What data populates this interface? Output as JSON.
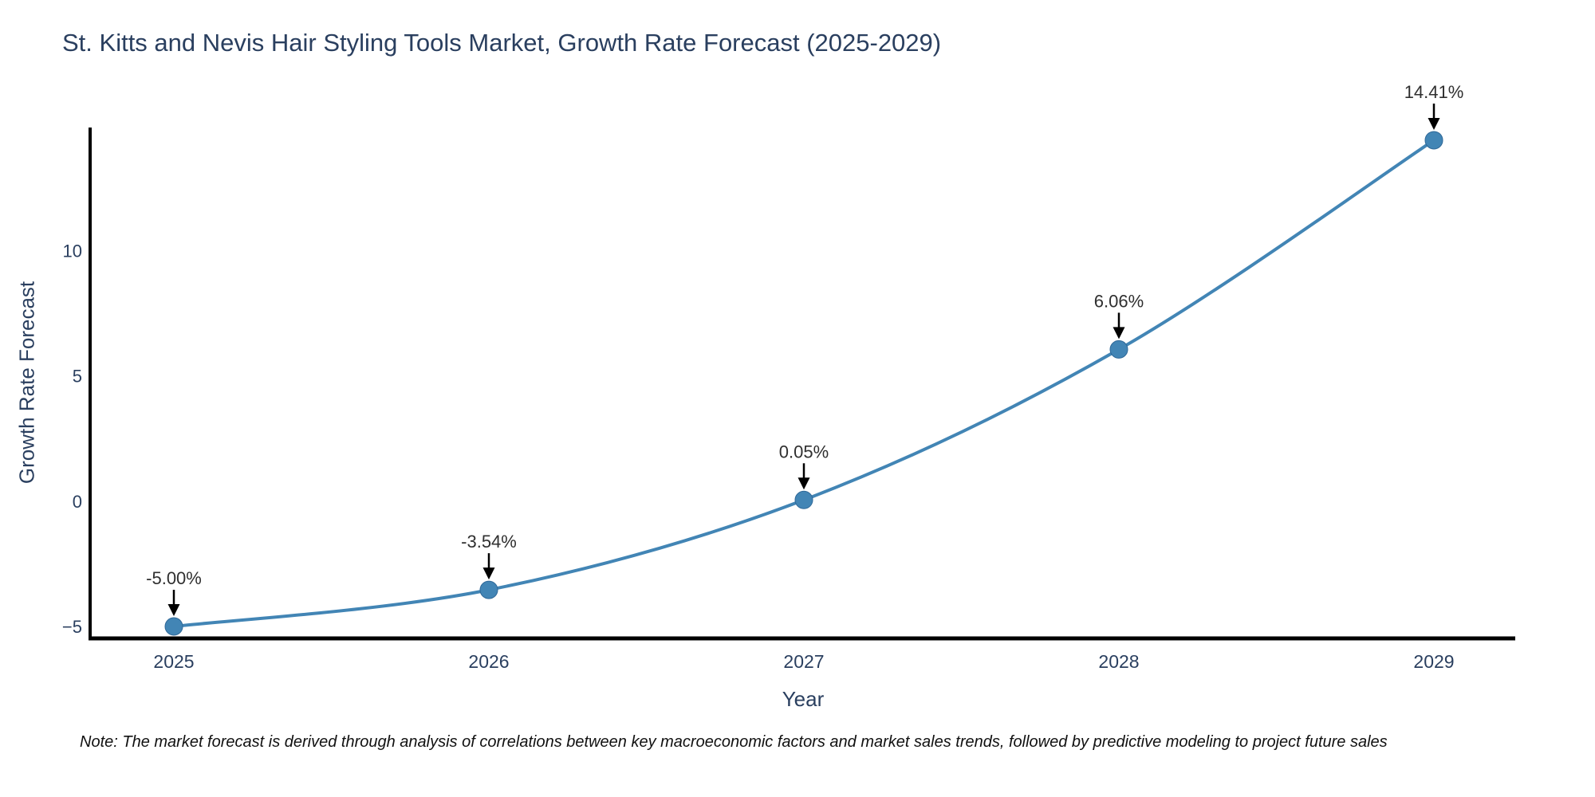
{
  "chart_data": {
    "type": "line",
    "title": "St. Kitts and Nevis Hair Styling Tools Market, Growth Rate Forecast (2025-2029)",
    "xlabel": "Year",
    "ylabel": "Growth Rate Forecast",
    "x": [
      "2025",
      "2026",
      "2027",
      "2028",
      "2029"
    ],
    "y": [
      -5.0,
      -3.54,
      0.05,
      6.06,
      14.41
    ],
    "point_labels": [
      "-5.00%",
      "-3.54%",
      "0.05%",
      "6.06%",
      "14.41%"
    ],
    "yticks": [
      10,
      5,
      0,
      -5
    ],
    "ytick_labels": [
      "10",
      "5",
      "0",
      "−5"
    ],
    "ylim": [
      -5.5,
      15.0
    ],
    "line_shape": "spline",
    "markers": true,
    "grid": false,
    "legend_position": "none",
    "annotation_style": "arrow-down-to-point",
    "colors": {
      "line": "#4285b5",
      "marker": "#4285b5",
      "marker_edge": "#2f6898",
      "axis_line": "#000000",
      "title_text": "#2a3f5f",
      "tick_text": "#2a3f5f",
      "annotation_text": "#2f2f2f",
      "arrow": "#000000",
      "note_text": "#111111",
      "background": "#ffffff"
    }
  },
  "note": "Note: The market forecast is derived through analysis of correlations between key macroeconomic factors and market sales trends, followed by predictive modeling to project future sales"
}
